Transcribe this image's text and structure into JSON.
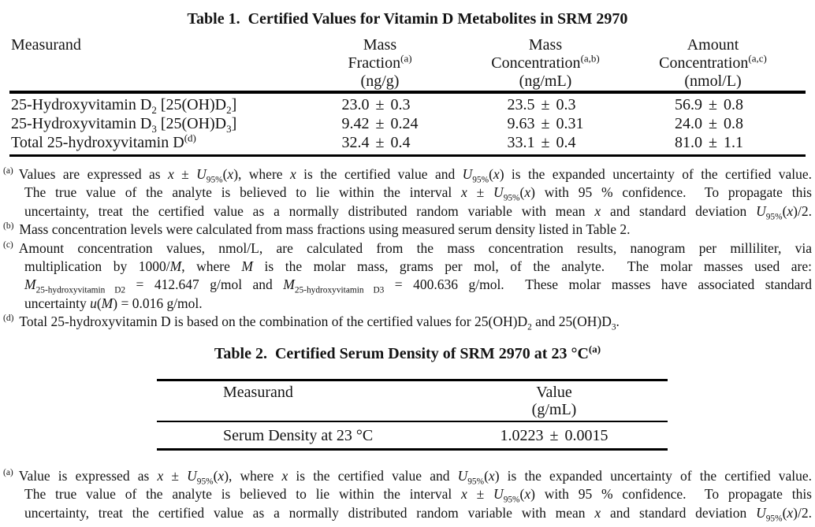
{
  "colors": {
    "text": "#131313",
    "background": "#ffffff",
    "rule": "#000000"
  },
  "table1": {
    "title": "Table 1.  Certified Values for Vitamin D Metabolites in SRM 2970",
    "columns": [
      {
        "lines": [
          "Measurand"
        ]
      },
      {
        "lines": [
          "Mass",
          "Fraction^(a)^",
          "(ng/g)"
        ]
      },
      {
        "lines": [
          "Mass",
          "Concentration^(a,b)^",
          "(ng/mL)"
        ]
      },
      {
        "lines": [
          "Amount",
          "Concentration^(a,c)^",
          "(nmol/L)"
        ]
      }
    ],
    "rows": [
      {
        "measurand": "25-Hydroxyvitamin D~2~ [25(OH)D~2~]",
        "mass_fraction": {
          "value": "23.0",
          "pm": "±",
          "uncertainty": "0.3"
        },
        "mass_concentration": {
          "value": "23.5",
          "pm": "±",
          "uncertainty": "0.3"
        },
        "amount_concentration": {
          "value": "56.9",
          "pm": "±",
          "uncertainty": "0.8"
        }
      },
      {
        "measurand": "25-Hydroxyvitamin D~3~ [25(OH)D~3~]",
        "mass_fraction": {
          "value": "9.42",
          "pm": "±",
          "uncertainty": "0.24"
        },
        "mass_concentration": {
          "value": "9.63",
          "pm": "±",
          "uncertainty": "0.31"
        },
        "amount_concentration": {
          "value": "24.0",
          "pm": "±",
          "uncertainty": "0.8"
        }
      },
      {
        "measurand": "Total 25-hydroxyvitamin D^(d)^",
        "mass_fraction": {
          "value": "32.4",
          "pm": "±",
          "uncertainty": "0.4"
        },
        "mass_concentration": {
          "value": "33.1",
          "pm": "±",
          "uncertainty": "0.4"
        },
        "amount_concentration": {
          "value": "81.0",
          "pm": "±",
          "uncertainty": "1.1"
        }
      }
    ],
    "footnotes": [
      {
        "marker": "(a)",
        "lines": [
          "Values are expressed as *x* ± *U*~95%~(*x*), where *x* is the certified value and *U*~95%~(*x*) is the expanded uncertainty of the certified value.",
          "The true value of the analyte is believed to lie within the interval *x* ± *U*~95%~(*x*) with 95 % confidence.  To propagate this",
          "uncertainty, treat the certified value as a normally distributed random variable with mean *x* and standard deviation *U*~95%~(*x*)/2."
        ]
      },
      {
        "marker": "(b)",
        "lines": [
          "Mass concentration levels were calculated from mass fractions using measured serum density listed in Table 2."
        ]
      },
      {
        "marker": "(c)",
        "lines": [
          "Amount concentration values, nmol/L, are calculated from the mass concentration results, nanogram per milliliter, via",
          "multiplication by 1000/*M*, where *M* is the molar mass, grams per mol, of the analyte.  The molar masses used are:",
          "*M*~25-hydroxyvitamin D2~ = 412.647 g/mol and *M*~25-hydroxyvitamin D3~ = 400.636 g/mol.  These molar masses have associated standard",
          "uncertainty *u*(*M*) = 0.016 g/mol."
        ]
      },
      {
        "marker": "(d)",
        "lines": [
          "Total 25-hydroxyvitamin D is based on the combination of the certified values for 25(OH)D~2~ and 25(OH)D~3~."
        ]
      }
    ]
  },
  "table2": {
    "title": "Table 2.  Certified Serum Density of SRM 2970 at 23 °C^(a)^",
    "columns": [
      {
        "lines": [
          "Measurand"
        ]
      },
      {
        "lines": [
          "Value",
          "(g/mL)"
        ]
      }
    ],
    "rows": [
      {
        "measurand": "Serum Density at 23 °C",
        "value": {
          "value": "1.0223",
          "pm": "±",
          "uncertainty": "0.0015"
        }
      }
    ],
    "footnotes": [
      {
        "marker": "(a)",
        "lines": [
          "Value is expressed as *x* ± *U*~95%~(*x*), where *x* is the certified value and *U*~95%~(*x*) is the expanded uncertainty of the certified value.",
          "The true value of the analyte is believed to lie within the interval *x* ± *U*~95%~(*x*) with 95 % confidence.  To propagate this",
          "uncertainty, treat the certified value as a normally distributed random variable with mean *x* and standard deviation *U*~95%~(*x*)/2."
        ]
      }
    ]
  }
}
